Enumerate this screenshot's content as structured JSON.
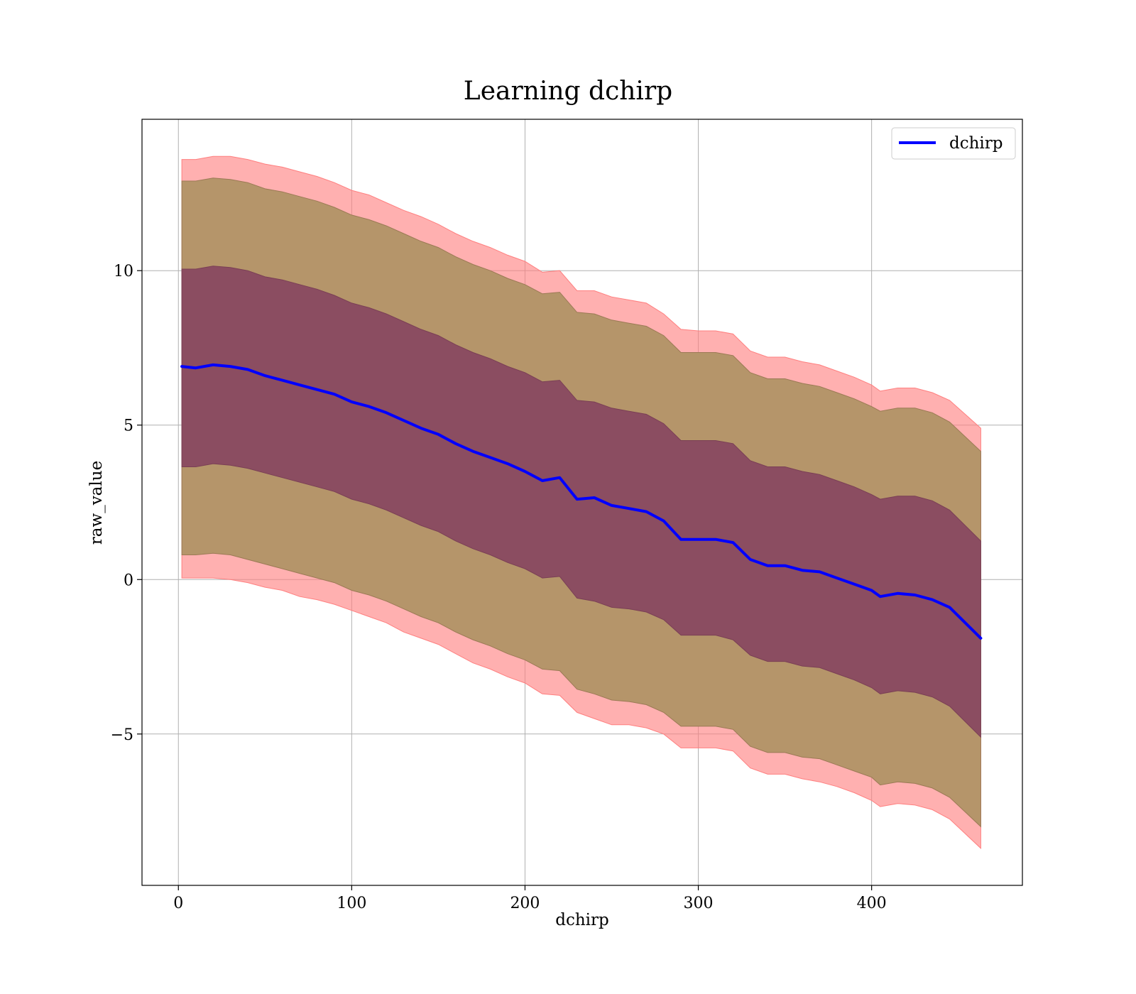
{
  "chart_data": {
    "type": "line",
    "title": "Learning dchirp",
    "xlabel": "dchirp",
    "ylabel": "raw_value",
    "xlim": [
      -21,
      487
    ],
    "ylim": [
      -9.9,
      14.9
    ],
    "xticks": [
      0,
      100,
      200,
      300,
      400
    ],
    "xtick_labels": [
      "0",
      "100",
      "200",
      "300",
      "400"
    ],
    "yticks": [
      -5,
      0,
      5,
      10
    ],
    "ytick_labels": [
      "−5",
      "0",
      "5",
      "10"
    ],
    "grid": true,
    "legend": {
      "placement": "top-right",
      "entries": [
        "dchirp"
      ]
    },
    "colors": {
      "line": "#0000ff",
      "outer_band": "#ff7f7f",
      "middle_band": "#b5956a",
      "inner_band": "#8b4d61",
      "grid": "#b0b0b0"
    },
    "x": [
      2,
      10,
      20,
      30,
      40,
      50,
      60,
      70,
      80,
      90,
      100,
      110,
      120,
      130,
      140,
      150,
      160,
      170,
      180,
      190,
      200,
      210,
      220,
      230,
      240,
      250,
      260,
      270,
      280,
      290,
      300,
      310,
      320,
      330,
      340,
      350,
      360,
      370,
      380,
      390,
      400,
      405,
      415,
      425,
      435,
      445,
      463
    ],
    "series": [
      {
        "name": "dchirp",
        "values": [
          6.9,
          6.85,
          6.95,
          6.9,
          6.8,
          6.6,
          6.45,
          6.3,
          6.15,
          6.0,
          5.75,
          5.6,
          5.4,
          5.15,
          4.9,
          4.7,
          4.4,
          4.15,
          3.95,
          3.75,
          3.5,
          3.2,
          3.3,
          2.6,
          2.65,
          2.4,
          2.3,
          2.2,
          1.9,
          1.3,
          1.3,
          1.3,
          1.2,
          0.65,
          0.45,
          0.45,
          0.3,
          0.25,
          0.05,
          -0.15,
          -0.35,
          -0.55,
          -0.45,
          -0.5,
          -0.65,
          -0.9,
          -1.9
        ]
      }
    ],
    "bands": [
      {
        "lower": [
          0.05,
          0.05,
          0.05,
          0.0,
          -0.1,
          -0.25,
          -0.35,
          -0.55,
          -0.65,
          -0.8,
          -1.0,
          -1.2,
          -1.4,
          -1.7,
          -1.9,
          -2.1,
          -2.4,
          -2.7,
          -2.9,
          -3.15,
          -3.35,
          -3.7,
          -3.75,
          -4.3,
          -4.5,
          -4.7,
          -4.7,
          -4.8,
          -5.0,
          -5.45,
          -5.45,
          -5.45,
          -5.55,
          -6.1,
          -6.3,
          -6.3,
          -6.45,
          -6.55,
          -6.7,
          -6.9,
          -7.15,
          -7.35,
          -7.25,
          -7.3,
          -7.45,
          -7.75,
          -8.7
        ],
        "upper": [
          13.6,
          13.6,
          13.7,
          13.7,
          13.6,
          13.45,
          13.35,
          13.2,
          13.05,
          12.85,
          12.6,
          12.45,
          12.2,
          11.95,
          11.75,
          11.5,
          11.2,
          10.95,
          10.75,
          10.5,
          10.3,
          9.95,
          10.0,
          9.35,
          9.35,
          9.15,
          9.05,
          8.95,
          8.6,
          8.1,
          8.05,
          8.05,
          7.95,
          7.4,
          7.2,
          7.2,
          7.05,
          6.95,
          6.75,
          6.55,
          6.3,
          6.1,
          6.2,
          6.2,
          6.05,
          5.8,
          4.9
        ]
      },
      {
        "lower": [
          0.8,
          0.8,
          0.85,
          0.8,
          0.65,
          0.5,
          0.35,
          0.2,
          0.05,
          -0.1,
          -0.35,
          -0.5,
          -0.7,
          -0.95,
          -1.2,
          -1.4,
          -1.7,
          -1.95,
          -2.15,
          -2.4,
          -2.6,
          -2.9,
          -2.95,
          -3.55,
          -3.7,
          -3.9,
          -3.95,
          -4.05,
          -4.3,
          -4.75,
          -4.75,
          -4.75,
          -4.85,
          -5.4,
          -5.6,
          -5.6,
          -5.75,
          -5.8,
          -6.0,
          -6.2,
          -6.4,
          -6.65,
          -6.55,
          -6.6,
          -6.75,
          -7.05,
          -8.0
        ],
        "upper": [
          12.9,
          12.9,
          13.0,
          12.95,
          12.85,
          12.65,
          12.55,
          12.4,
          12.25,
          12.05,
          11.8,
          11.65,
          11.45,
          11.2,
          10.95,
          10.75,
          10.45,
          10.2,
          10.0,
          9.75,
          9.55,
          9.25,
          9.3,
          8.65,
          8.6,
          8.4,
          8.3,
          8.2,
          7.9,
          7.35,
          7.35,
          7.35,
          7.25,
          6.7,
          6.5,
          6.5,
          6.35,
          6.25,
          6.05,
          5.85,
          5.6,
          5.45,
          5.55,
          5.55,
          5.4,
          5.1,
          4.15
        ]
      },
      {
        "lower": [
          3.65,
          3.65,
          3.75,
          3.7,
          3.6,
          3.45,
          3.3,
          3.15,
          3.0,
          2.85,
          2.6,
          2.45,
          2.25,
          2.0,
          1.75,
          1.55,
          1.25,
          1.0,
          0.8,
          0.55,
          0.35,
          0.05,
          0.1,
          -0.6,
          -0.7,
          -0.9,
          -0.95,
          -1.05,
          -1.3,
          -1.8,
          -1.8,
          -1.8,
          -1.95,
          -2.45,
          -2.65,
          -2.65,
          -2.8,
          -2.85,
          -3.05,
          -3.25,
          -3.5,
          -3.7,
          -3.6,
          -3.65,
          -3.8,
          -4.1,
          -5.1
        ],
        "upper": [
          10.05,
          10.05,
          10.15,
          10.1,
          10.0,
          9.8,
          9.7,
          9.55,
          9.4,
          9.2,
          8.95,
          8.8,
          8.6,
          8.35,
          8.1,
          7.9,
          7.6,
          7.35,
          7.15,
          6.9,
          6.7,
          6.4,
          6.45,
          5.8,
          5.75,
          5.55,
          5.45,
          5.35,
          5.05,
          4.5,
          4.5,
          4.5,
          4.4,
          3.85,
          3.65,
          3.65,
          3.5,
          3.4,
          3.2,
          3.0,
          2.75,
          2.6,
          2.7,
          2.7,
          2.55,
          2.25,
          1.25
        ]
      }
    ]
  }
}
